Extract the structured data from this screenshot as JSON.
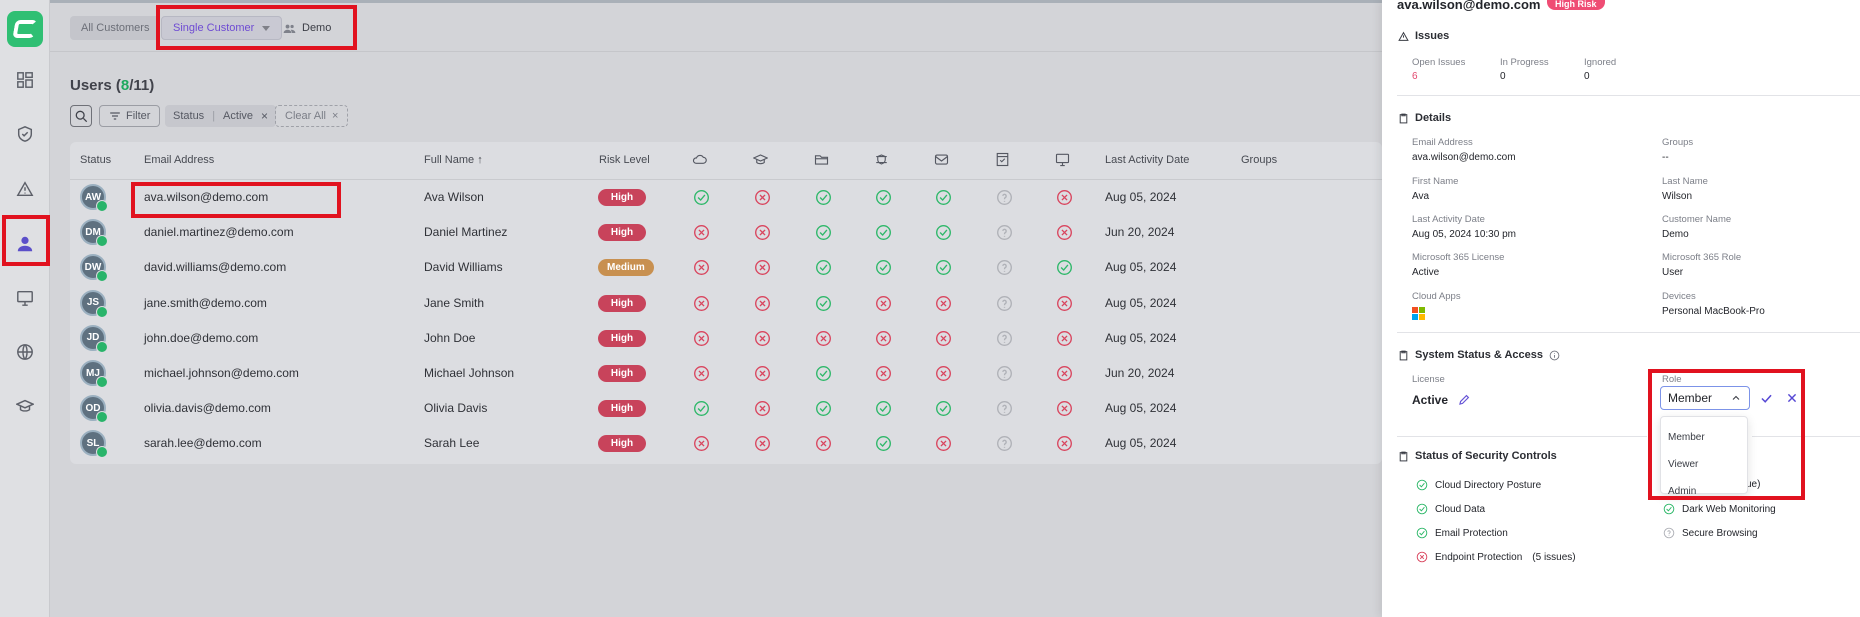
{
  "colors": {
    "brand": "#2fbf73",
    "success": "#2fb86a",
    "fail": "#d9465f",
    "risk_high": "#c8435b",
    "risk_medium": "#c89050",
    "unknown": "#b0b2b8"
  },
  "nav": [
    "dashboard-icon",
    "shield-check-icon",
    "warning-icon",
    "user-icon",
    "monitor-icon",
    "globe-icon",
    "graduation-cap-icon"
  ],
  "breadcrumb": {
    "all": "All Customers",
    "single": "Single Customer",
    "demo": "Demo"
  },
  "page": {
    "title_prefix": "Users (",
    "count_shown": "8",
    "count_sep": "/",
    "count_total": "11",
    "title_suffix": ")"
  },
  "filters": {
    "filter_label": "Filter",
    "chip_key": "Status",
    "chip_value": "Active",
    "clear_all": "Clear All"
  },
  "table": {
    "columns": {
      "status": "Status",
      "email": "Email Address",
      "name": "Full Name",
      "risk": "Risk Level",
      "last": "Last Activity Date",
      "groups": "Groups"
    },
    "control_icons": [
      "cloud-icon",
      "graduation-cap-icon",
      "folder-icon",
      "browser-shield-icon",
      "mail-icon",
      "checklist-icon",
      "monitor-icon"
    ],
    "rows": [
      {
        "initials": "AW",
        "email": "ava.wilson@demo.com",
        "name": "Ava Wilson",
        "risk": "High",
        "statuses": [
          "ok",
          "fail",
          "ok",
          "ok",
          "ok",
          "unknown",
          "fail"
        ],
        "last": "Aug 05, 2024"
      },
      {
        "initials": "DM",
        "email": "daniel.martinez@demo.com",
        "name": "Daniel Martinez",
        "risk": "High",
        "statuses": [
          "fail",
          "fail",
          "ok",
          "ok",
          "ok",
          "unknown",
          "fail"
        ],
        "last": "Jun 20, 2024"
      },
      {
        "initials": "DW",
        "email": "david.williams@demo.com",
        "name": "David Williams",
        "risk": "Medium",
        "statuses": [
          "fail",
          "fail",
          "ok",
          "ok",
          "ok",
          "unknown",
          "ok"
        ],
        "last": "Aug 05, 2024"
      },
      {
        "initials": "JS",
        "email": "jane.smith@demo.com",
        "name": "Jane Smith",
        "risk": "High",
        "statuses": [
          "fail",
          "fail",
          "ok",
          "fail",
          "fail",
          "unknown",
          "fail"
        ],
        "last": "Aug 05, 2024"
      },
      {
        "initials": "JD",
        "email": "john.doe@demo.com",
        "name": "John Doe",
        "risk": "High",
        "statuses": [
          "fail",
          "fail",
          "fail",
          "fail",
          "fail",
          "unknown",
          "fail"
        ],
        "last": "Aug 05, 2024"
      },
      {
        "initials": "MJ",
        "email": "michael.johnson@demo.com",
        "name": "Michael Johnson",
        "risk": "High",
        "statuses": [
          "fail",
          "fail",
          "ok",
          "fail",
          "fail",
          "unknown",
          "fail"
        ],
        "last": "Jun 20, 2024"
      },
      {
        "initials": "OD",
        "email": "olivia.davis@demo.com",
        "name": "Olivia Davis",
        "risk": "High",
        "statuses": [
          "ok",
          "fail",
          "ok",
          "ok",
          "ok",
          "unknown",
          "fail"
        ],
        "last": "Aug 05, 2024"
      },
      {
        "initials": "SL",
        "email": "sarah.lee@demo.com",
        "name": "Sarah Lee",
        "risk": "High",
        "statuses": [
          "fail",
          "fail",
          "fail",
          "ok",
          "fail",
          "unknown",
          "fail"
        ],
        "last": "Aug 05, 2024"
      }
    ]
  },
  "panel": {
    "email": "ava.wilson@demo.com",
    "badge": "High Risk",
    "issues": {
      "title": "Issues",
      "open_label": "Open Issues",
      "open": "6",
      "progress_label": "In Progress",
      "progress": "0",
      "ignored_label": "Ignored",
      "ignored": "0"
    },
    "details": {
      "title": "Details",
      "email_label": "Email Address",
      "email": "ava.wilson@demo.com",
      "groups_label": "Groups",
      "groups": "--",
      "first_label": "First Name",
      "first": "Ava",
      "last_label": "Last Name",
      "last": "Wilson",
      "activity_label": "Last Activity Date",
      "activity": "Aug 05, 2024 10:30 pm",
      "customer_label": "Customer Name",
      "customer": "Demo",
      "license_label": "Microsoft 365 License",
      "license": "Active",
      "role_label": "Microsoft 365 Role",
      "role": "User",
      "apps_label": "Cloud Apps",
      "devices_label": "Devices",
      "devices": "Personal MacBook-Pro"
    },
    "access": {
      "title": "System Status & Access",
      "license_label": "License",
      "license": "Active",
      "role_label": "Role",
      "role_selected": "Member",
      "options": [
        "Member",
        "Viewer",
        "Admin"
      ]
    },
    "controls": {
      "title": "Status of Security Controls",
      "items": [
        {
          "label": "Cloud Directory Posture",
          "status": "ok"
        },
        {
          "label": "Cloud Data",
          "status": "ok"
        },
        {
          "label": "Email Protection",
          "status": "ok"
        },
        {
          "label": "Endpoint Protection",
          "status": "fail",
          "note": "(5 issues)"
        }
      ],
      "right": [
        {
          "label": "ssue)",
          "status": "hidden"
        },
        {
          "label": "Dark Web Monitoring",
          "status": "ok"
        },
        {
          "label": "Secure Browsing",
          "status": "unknown"
        }
      ]
    }
  }
}
